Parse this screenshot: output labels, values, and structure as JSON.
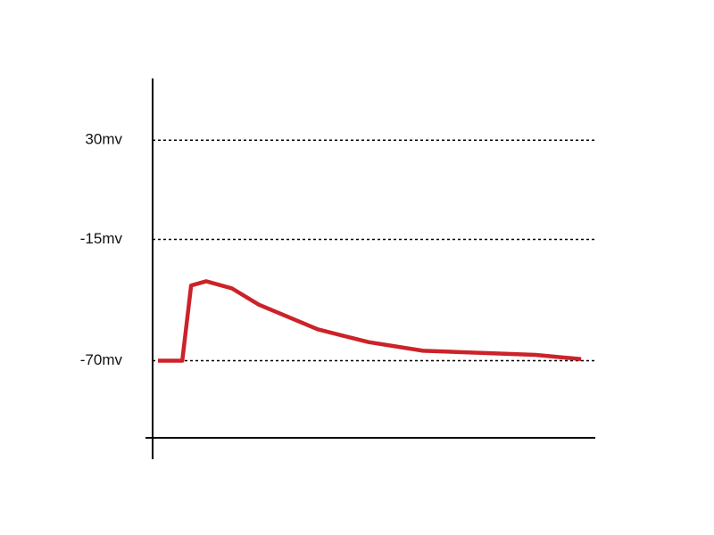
{
  "chart_data": {
    "type": "line",
    "x": [
      1.2,
      6.7,
      8.7,
      12.1,
      17.9,
      24,
      37.3,
      48.8,
      61.1,
      86.5,
      96.8
    ],
    "values": [
      -70,
      -70,
      -35.9,
      -34,
      -37.2,
      -44.6,
      -55.8,
      -61.6,
      -65.5,
      -67.4,
      -69.3
    ],
    "color": "#cc2229",
    "xlim": [
      0,
      100
    ],
    "ylim": [
      -105,
      58
    ],
    "yticks": [
      {
        "value": 30,
        "label": "30mv"
      },
      {
        "value": -15,
        "label": "-15mv"
      },
      {
        "value": -70,
        "label": "-70mv"
      }
    ],
    "grid": true
  }
}
